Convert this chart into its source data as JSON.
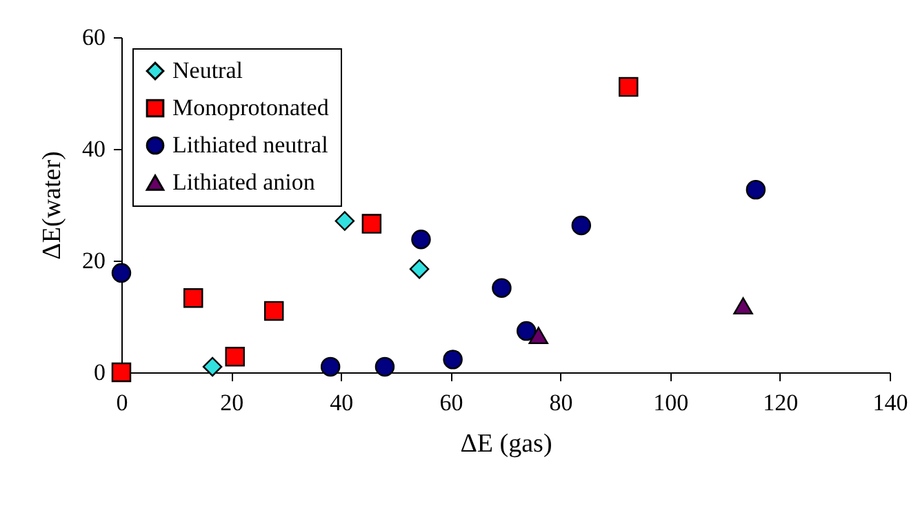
{
  "chart_data": {
    "type": "scatter",
    "xlabel": "ΔE (gas)",
    "ylabel": "ΔE(water)",
    "xlim": [
      0,
      140
    ],
    "xticks": [
      0,
      20,
      40,
      60,
      80,
      100,
      120,
      140
    ],
    "ylim": [
      0,
      60
    ],
    "yticks": [
      0,
      20,
      40,
      60
    ],
    "grid": false,
    "legend": "top left",
    "series": [
      {
        "name": "Neutral",
        "color": "#33e0e0",
        "marker": "diamond",
        "x": [
          16.6,
          40.7,
          54.3
        ],
        "values": [
          1.0,
          27.1,
          18.5
        ]
      },
      {
        "name": "Monoprotonated",
        "color": "#ff0000",
        "marker": "square",
        "x": [
          0,
          13.1,
          20.7,
          27.8,
          45.6,
          92.4
        ],
        "values": [
          0,
          13.3,
          2.8,
          11.0,
          26.6,
          51.1
        ]
      },
      {
        "name": "Lithiated neutral",
        "color": "#000080",
        "marker": "circle",
        "x": [
          0,
          38.1,
          48.0,
          54.6,
          60.4,
          69.3,
          73.8,
          83.8,
          115.6
        ],
        "values": [
          17.8,
          1.0,
          1.0,
          23.8,
          2.3,
          15.1,
          7.4,
          26.3,
          32.7
        ]
      },
      {
        "name": "Lithiated anion",
        "color": "#660066",
        "marker": "triangle",
        "x": [
          76.0,
          113.3
        ],
        "values": [
          6.6,
          11.9
        ]
      }
    ]
  }
}
